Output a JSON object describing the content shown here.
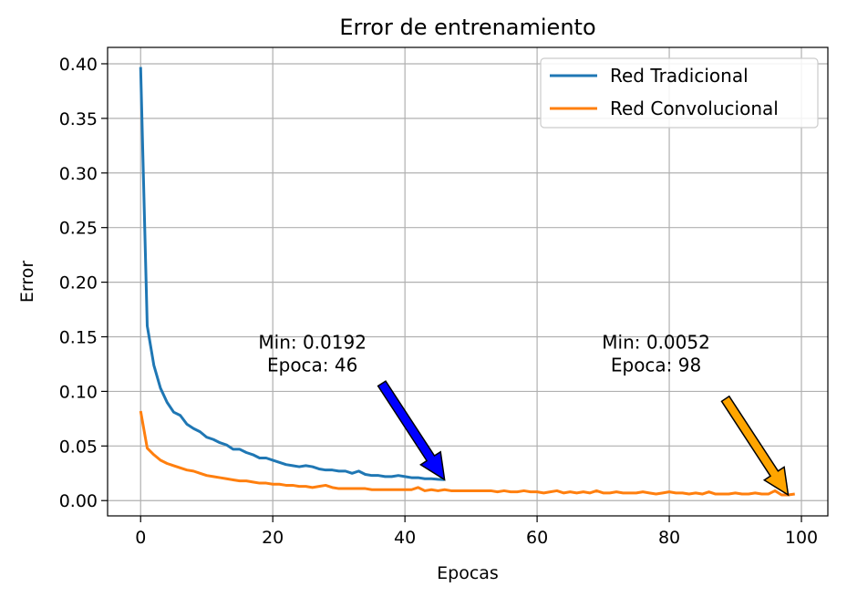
{
  "chart_data": {
    "type": "line",
    "title": "Error de entrenamiento",
    "xlabel": "Epocas",
    "ylabel": "Error",
    "xlim": [
      -5,
      104
    ],
    "ylim": [
      -0.014,
      0.415
    ],
    "xticks": [
      0,
      20,
      40,
      60,
      80,
      100
    ],
    "yticks": [
      0.0,
      0.05,
      0.1,
      0.15,
      0.2,
      0.25,
      0.3,
      0.35,
      0.4
    ],
    "xtick_labels": [
      "0",
      "20",
      "40",
      "60",
      "80",
      "100"
    ],
    "ytick_labels": [
      "0.00",
      "0.05",
      "0.10",
      "0.15",
      "0.20",
      "0.25",
      "0.30",
      "0.35",
      "0.40"
    ],
    "grid": true,
    "legend_position": "top-right",
    "series": [
      {
        "name": "Red Tradicional",
        "color": "#1f77b4",
        "x": [
          0,
          1,
          2,
          3,
          4,
          5,
          6,
          7,
          8,
          9,
          10,
          11,
          12,
          13,
          14,
          15,
          16,
          17,
          18,
          19,
          20,
          21,
          22,
          23,
          24,
          25,
          26,
          27,
          28,
          29,
          30,
          31,
          32,
          33,
          34,
          35,
          36,
          37,
          38,
          39,
          40,
          41,
          42,
          43,
          44,
          45,
          46
        ],
        "y": [
          0.397,
          0.16,
          0.124,
          0.103,
          0.09,
          0.081,
          0.078,
          0.07,
          0.066,
          0.063,
          0.058,
          0.056,
          0.053,
          0.051,
          0.047,
          0.047,
          0.044,
          0.042,
          0.039,
          0.039,
          0.037,
          0.035,
          0.033,
          0.032,
          0.031,
          0.032,
          0.031,
          0.029,
          0.028,
          0.028,
          0.027,
          0.027,
          0.025,
          0.027,
          0.024,
          0.023,
          0.023,
          0.022,
          0.022,
          0.023,
          0.022,
          0.021,
          0.021,
          0.02,
          0.02,
          0.0195,
          0.0192
        ]
      },
      {
        "name": "Red Convolucional",
        "color": "#ff7f0e",
        "x": [
          0,
          1,
          2,
          3,
          4,
          5,
          6,
          7,
          8,
          9,
          10,
          11,
          12,
          13,
          14,
          15,
          16,
          17,
          18,
          19,
          20,
          21,
          22,
          23,
          24,
          25,
          26,
          27,
          28,
          29,
          30,
          31,
          32,
          33,
          34,
          35,
          36,
          37,
          38,
          39,
          40,
          41,
          42,
          43,
          44,
          45,
          46,
          47,
          48,
          49,
          50,
          51,
          52,
          53,
          54,
          55,
          56,
          57,
          58,
          59,
          60,
          61,
          62,
          63,
          64,
          65,
          66,
          67,
          68,
          69,
          70,
          71,
          72,
          73,
          74,
          75,
          76,
          77,
          78,
          79,
          80,
          81,
          82,
          83,
          84,
          85,
          86,
          87,
          88,
          89,
          90,
          91,
          92,
          93,
          94,
          95,
          96,
          97,
          98,
          99
        ],
        "y": [
          0.082,
          0.048,
          0.042,
          0.037,
          0.034,
          0.032,
          0.03,
          0.028,
          0.027,
          0.025,
          0.023,
          0.022,
          0.021,
          0.02,
          0.019,
          0.018,
          0.018,
          0.017,
          0.016,
          0.016,
          0.015,
          0.015,
          0.014,
          0.014,
          0.013,
          0.013,
          0.012,
          0.013,
          0.014,
          0.012,
          0.011,
          0.011,
          0.011,
          0.011,
          0.011,
          0.01,
          0.01,
          0.01,
          0.01,
          0.01,
          0.01,
          0.01,
          0.012,
          0.009,
          0.01,
          0.009,
          0.01,
          0.009,
          0.009,
          0.009,
          0.009,
          0.009,
          0.009,
          0.009,
          0.008,
          0.009,
          0.008,
          0.008,
          0.009,
          0.008,
          0.008,
          0.007,
          0.008,
          0.009,
          0.007,
          0.008,
          0.007,
          0.008,
          0.007,
          0.009,
          0.007,
          0.007,
          0.008,
          0.007,
          0.007,
          0.007,
          0.008,
          0.007,
          0.006,
          0.007,
          0.008,
          0.007,
          0.007,
          0.006,
          0.007,
          0.006,
          0.008,
          0.006,
          0.006,
          0.006,
          0.007,
          0.006,
          0.006,
          0.007,
          0.006,
          0.006,
          0.009,
          0.0052,
          0.0052,
          0.006
        ]
      }
    ],
    "annotations": [
      {
        "text_line1": "Min: 0.0192",
        "text_line2": "Epoca: 46",
        "x": 46,
        "y": 0.0192,
        "text_x": 26,
        "text_y": 0.13,
        "arrow_color": "#0000ff"
      },
      {
        "text_line1": "Min: 0.0052",
        "text_line2": "Epoca: 98",
        "x": 98,
        "y": 0.0052,
        "text_x": 78,
        "text_y": 0.13,
        "arrow_color": "#ffa500"
      }
    ]
  }
}
